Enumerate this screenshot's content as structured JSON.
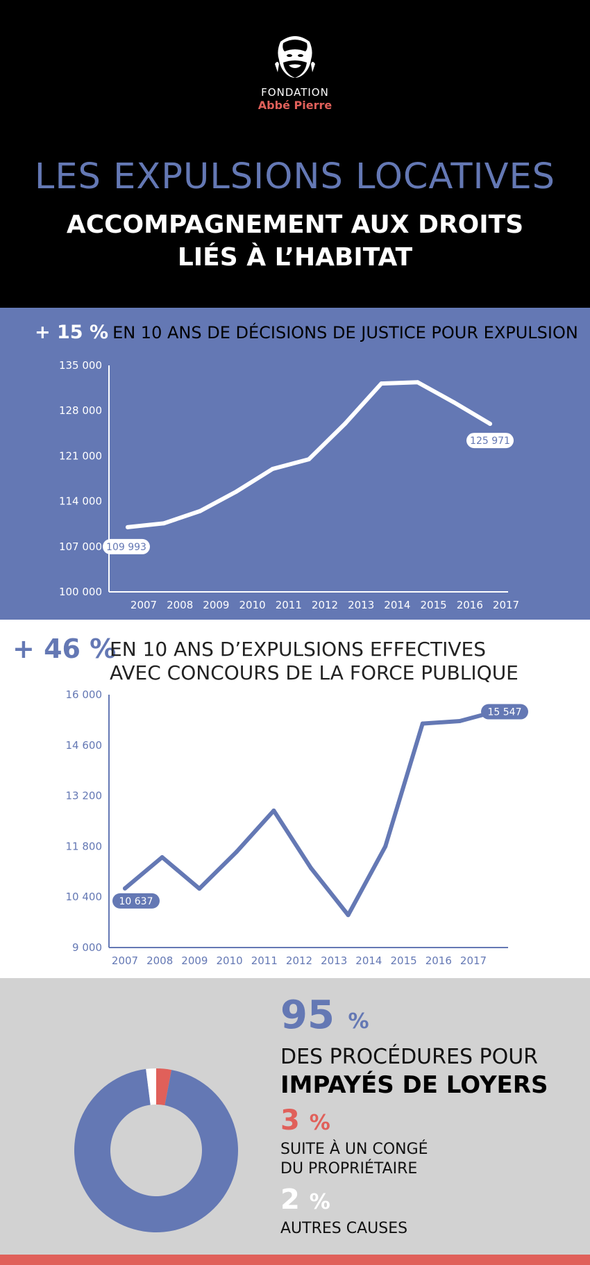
{
  "header": {
    "logo_line1": "FONDATION",
    "logo_line2": "Abbé Pierre",
    "title": "LES EXPULSIONS LOCATIVES",
    "subtitle_line1": "ACCOMPAGNEMENT AUX DROITS",
    "subtitle_line2": "LIÉS À L’HABITAT"
  },
  "section1": {
    "pct": "+ 15 %",
    "text": "EN 10 ANS DE DÉCISIONS DE JUSTICE POUR EXPULSION"
  },
  "section2": {
    "pct": "+ 46 %",
    "text_line1": "EN 10 ANS D’EXPULSIONS EFFECTIVES",
    "text_line2": "AVEC CONCOURS DE LA FORCE PUBLIQUE"
  },
  "section3": {
    "pct95": "95",
    "pct95_unit": "%",
    "line1": "DES PROCÉDURES POUR",
    "line2": "IMPAYÉS DE LOYERS",
    "pct3": "3",
    "pct3_unit": "%",
    "line3": "SUITE À UN CONGÉ",
    "line4": "DU PROPRIÉTAIRE",
    "pct2": "2",
    "pct2_unit": "%",
    "line5": "AUTRES CAUSES"
  },
  "colors": {
    "blue": "#6478b4",
    "red": "#e0605a",
    "white": "#ffffff",
    "black": "#000000",
    "grey": "#d2d2d2"
  },
  "chart_data": [
    {
      "type": "line",
      "title": "",
      "x": [
        "2007",
        "2008",
        "2009",
        "2010",
        "2011",
        "2012",
        "2013",
        "2014",
        "2015",
        "2016",
        "2017"
      ],
      "series": [
        {
          "values": [
            109993,
            110600,
            112500,
            115500,
            119000,
            120500,
            126000,
            132200,
            132400,
            129300,
            125971
          ]
        }
      ],
      "yticks": [
        "100 000",
        "107 000",
        "114 000",
        "121 000",
        "128 000",
        "135 000"
      ],
      "ylim": [
        100000,
        135000
      ],
      "labels": {
        "first": "109 993",
        "last": "125 971"
      }
    },
    {
      "type": "line",
      "title": "",
      "x": [
        "2007",
        "2008",
        "2009",
        "2010",
        "2011",
        "2012",
        "2013",
        "2014",
        "2015",
        "2016",
        "2017"
      ],
      "series": [
        {
          "values": [
            10637,
            11500,
            10630,
            11650,
            12790,
            11200,
            9900,
            11800,
            15200,
            15270,
            15547
          ]
        }
      ],
      "yticks": [
        "9 000",
        "10 400",
        "11 800",
        "13 200",
        "14 600",
        "16 000"
      ],
      "ylim": [
        9000,
        16000
      ],
      "labels": {
        "first": "10 637",
        "last": "15 547"
      }
    },
    {
      "type": "pie",
      "categories": [
        "IMPAYÉS DE LOYERS",
        "SUITE À UN CONGÉ DU PROPRIÉTAIRE",
        "AUTRES CAUSES"
      ],
      "values": [
        95,
        3,
        2
      ]
    }
  ]
}
